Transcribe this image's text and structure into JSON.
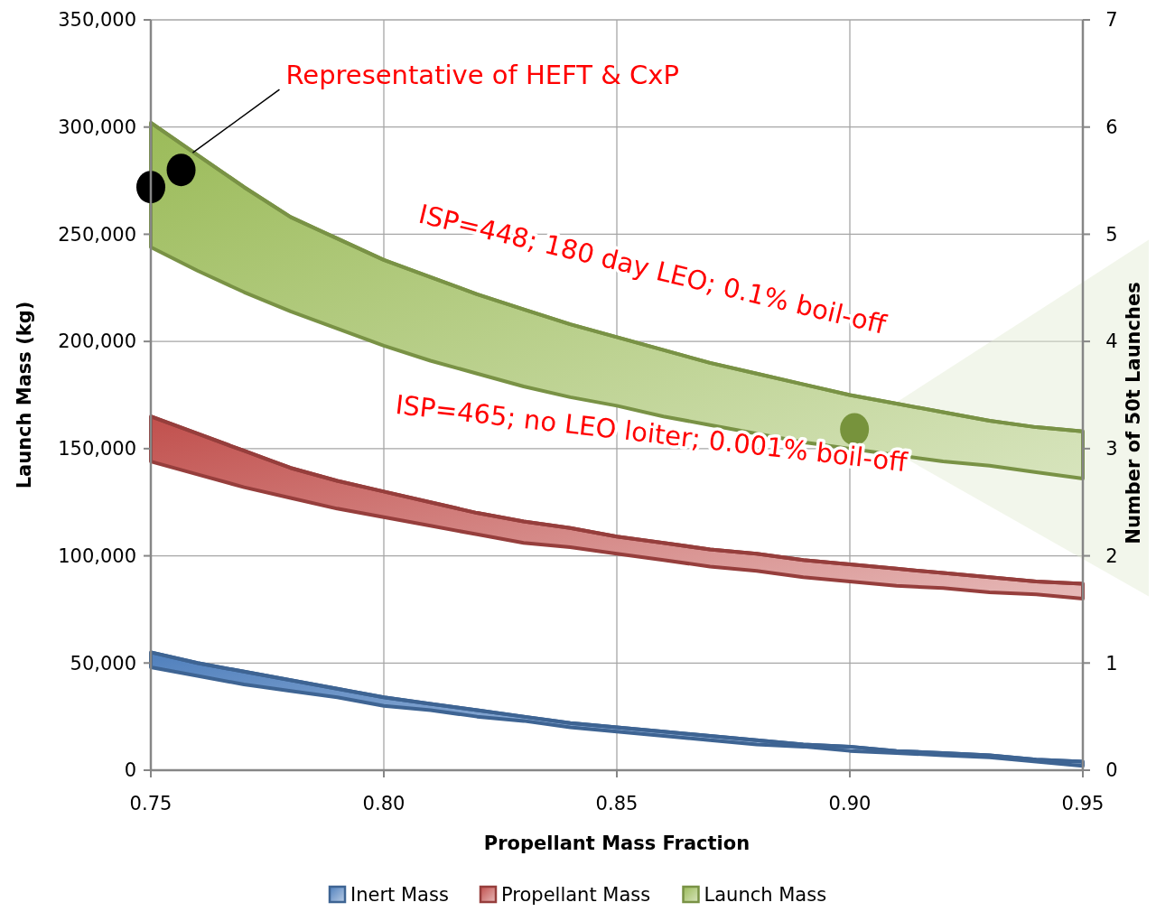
{
  "chart_data": {
    "type": "line",
    "xlabel": "Propellant Mass Fraction",
    "ylabel": "Launch Mass (kg)",
    "y2label": "Number of 50t Launches",
    "x": [
      0.75,
      0.76,
      0.77,
      0.78,
      0.79,
      0.8,
      0.81,
      0.82,
      0.83,
      0.84,
      0.85,
      0.86,
      0.87,
      0.88,
      0.89,
      0.9,
      0.91,
      0.92,
      0.93,
      0.94,
      0.95
    ],
    "xlim": [
      0.75,
      0.95
    ],
    "xticks": [
      {
        "value": 0.75,
        "label": "0.75"
      },
      {
        "value": 0.8,
        "label": "0.80"
      },
      {
        "value": 0.85,
        "label": "0.85"
      },
      {
        "value": 0.9,
        "label": "0.90"
      },
      {
        "value": 0.95,
        "label": "0.95"
      }
    ],
    "ylim": [
      0,
      350000
    ],
    "yticks": [
      {
        "value": 0,
        "label": "0"
      },
      {
        "value": 50000,
        "label": "50,000"
      },
      {
        "value": 100000,
        "label": "100,000"
      },
      {
        "value": 150000,
        "label": "150,000"
      },
      {
        "value": 200000,
        "label": "200,000"
      },
      {
        "value": 250000,
        "label": "250,000"
      },
      {
        "value": 300000,
        "label": "300,000"
      },
      {
        "value": 350000,
        "label": "350,000"
      }
    ],
    "y2lim": [
      0,
      7
    ],
    "y2ticks": [
      0,
      1,
      2,
      3,
      4,
      5,
      6,
      7
    ],
    "grid": true,
    "legend": "bottom",
    "series": [
      {
        "name": "Inert Mass",
        "color": "#3e6493",
        "values": [
          55000,
          50000,
          46000,
          42000,
          38000,
          34000,
          31000,
          28000,
          25000,
          22000,
          20000,
          18000,
          16000,
          14000,
          12000,
          11000,
          9000,
          8000,
          7000,
          5000,
          4000
        ],
        "upper": [
          55000,
          50000,
          46000,
          42000,
          38000,
          34000,
          31000,
          28000,
          25000,
          22000,
          20000,
          18000,
          16000,
          14000,
          12000,
          11000,
          9000,
          8000,
          7000,
          5000,
          4000
        ],
        "lower": [
          48000,
          44000,
          40000,
          37000,
          34000,
          30000,
          28000,
          25000,
          23000,
          20000,
          18000,
          16000,
          14000,
          12000,
          11000,
          9000,
          8000,
          7000,
          6000,
          4000,
          2000
        ]
      },
      {
        "name": "Propellant Mass",
        "color": "#963e3c",
        "values": [
          165000,
          157000,
          149000,
          141000,
          135000,
          130000,
          125000,
          120000,
          116000,
          113000,
          109000,
          106000,
          103000,
          101000,
          98000,
          96000,
          94000,
          92000,
          90000,
          88000,
          87000
        ],
        "upper": [
          165000,
          157000,
          149000,
          141000,
          135000,
          130000,
          125000,
          120000,
          116000,
          113000,
          109000,
          106000,
          103000,
          101000,
          98000,
          96000,
          94000,
          92000,
          90000,
          88000,
          87000
        ],
        "lower": [
          144000,
          138000,
          132000,
          127000,
          122000,
          118000,
          114000,
          110000,
          106000,
          104000,
          101000,
          98000,
          95000,
          93000,
          90000,
          88000,
          86000,
          85000,
          83000,
          82000,
          80000
        ]
      },
      {
        "name": "Launch Mass",
        "color": "#799245",
        "values": [
          302000,
          287000,
          272000,
          258000,
          248000,
          238000,
          230000,
          222000,
          215000,
          208000,
          202000,
          196000,
          190000,
          185000,
          180000,
          175000,
          171000,
          167000,
          163000,
          160000,
          158000
        ],
        "upper": [
          302000,
          287000,
          272000,
          258000,
          248000,
          238000,
          230000,
          222000,
          215000,
          208000,
          202000,
          196000,
          190000,
          185000,
          180000,
          175000,
          171000,
          167000,
          163000,
          160000,
          158000
        ],
        "lower": [
          244000,
          233000,
          223000,
          214000,
          206000,
          198000,
          191000,
          185000,
          179000,
          174000,
          170000,
          165000,
          161000,
          157000,
          153000,
          150000,
          147000,
          144000,
          142000,
          139000,
          136000
        ]
      },
      {
        "type": "scatter",
        "color": "#000000",
        "x": [
          0.75,
          0.7565
        ],
        "values": [
          272000,
          280000
        ],
        "marker": "circle"
      },
      {
        "type": "scatter",
        "color": "#77933c",
        "x": [
          0.901
        ],
        "values": [
          159000
        ],
        "marker": "circle"
      }
    ],
    "annotations": [
      {
        "text": "Representative of HEFT & CxP",
        "x": 0.759,
        "y": 288000
      },
      "ISP=448; 180 day LEO; 0.1% boil-off",
      "ISP=465; no LEO loiter; 0.001% boil-off"
    ]
  }
}
